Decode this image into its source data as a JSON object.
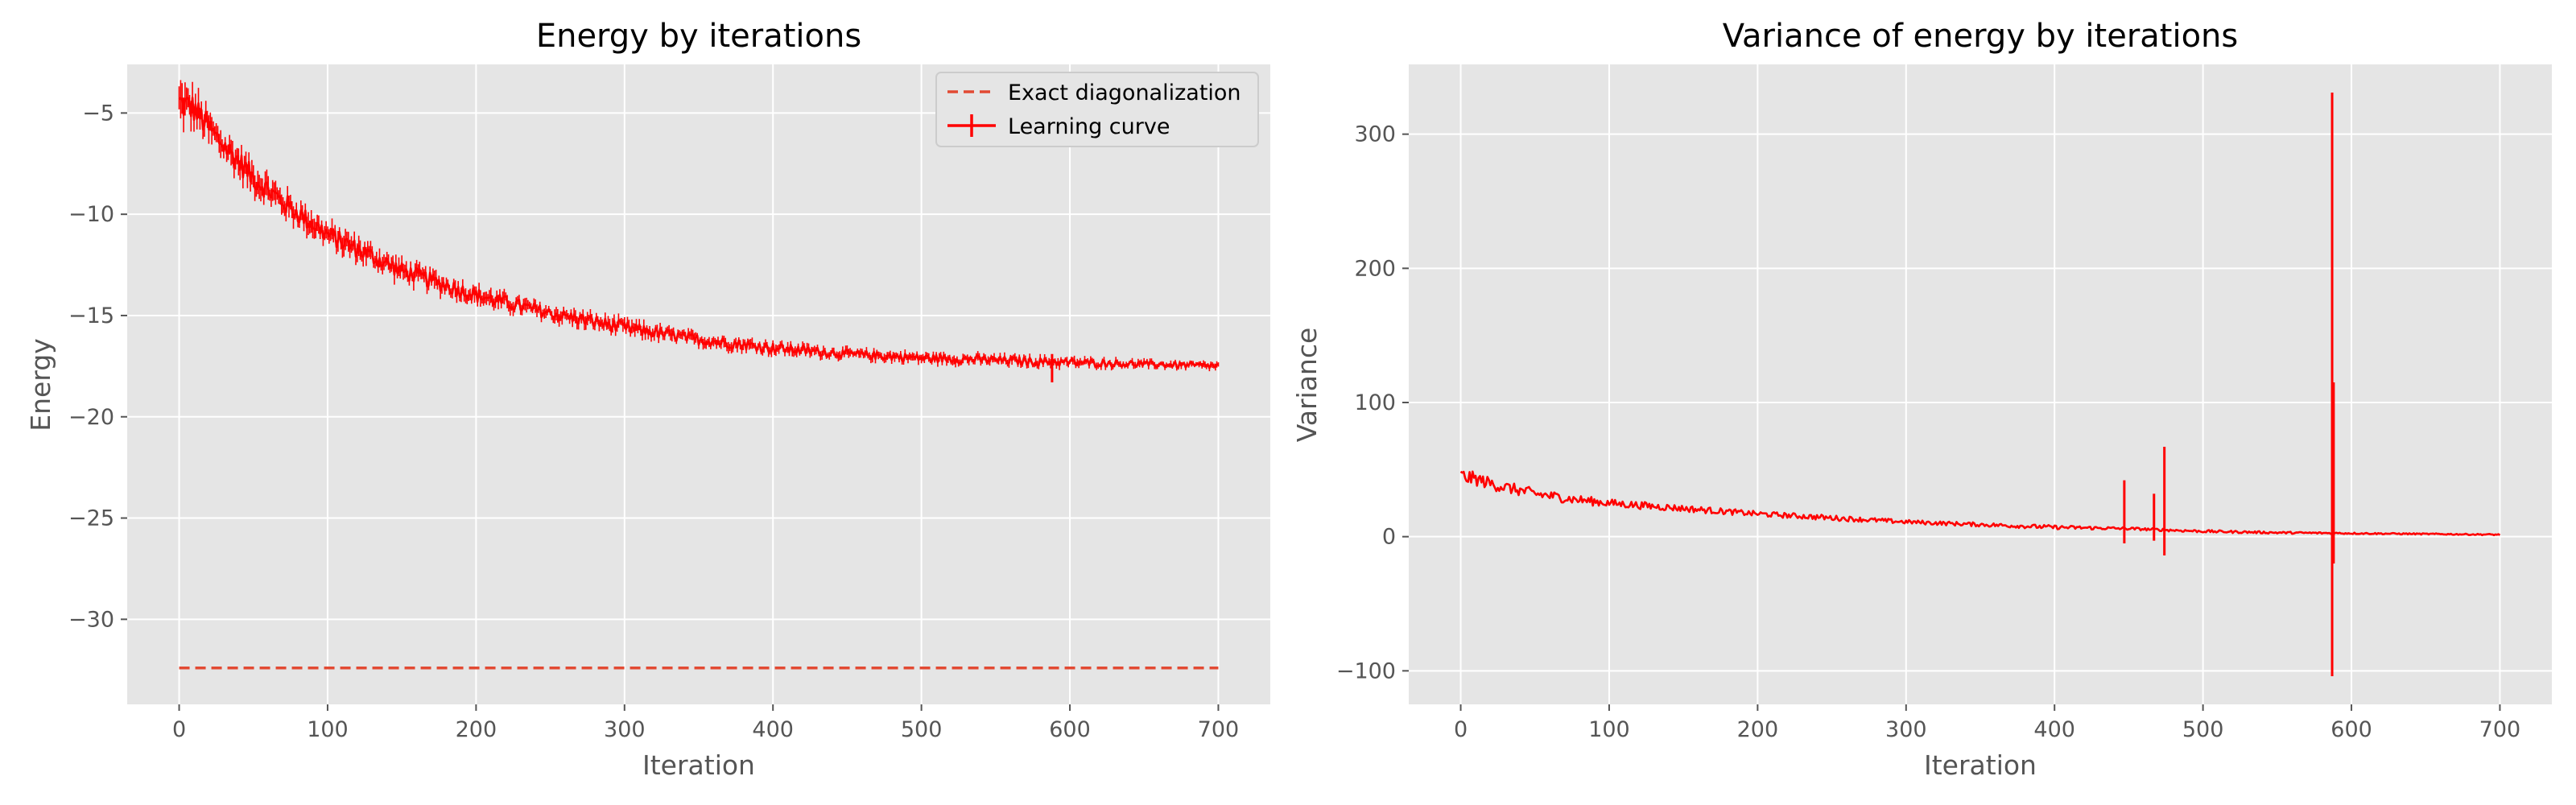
{
  "colors": {
    "background": "#ffffff",
    "panel": "#e5e5e5",
    "grid": "#ffffff",
    "tick_text": "#555555",
    "learning_curve": "#ff0000",
    "exact_line": "#e24a33"
  },
  "chart_data": [
    {
      "type": "line",
      "title": "Energy by iterations",
      "xlabel": "Iteration",
      "ylabel": "Energy",
      "xlim": [
        -35,
        735
      ],
      "ylim": [
        -34.2,
        -2.6
      ],
      "xticks": [
        0,
        100,
        200,
        300,
        400,
        500,
        600,
        700
      ],
      "yticks": [
        -30,
        -25,
        -20,
        -15,
        -10,
        -5
      ],
      "grid": true,
      "legend_position": "top-right",
      "series": [
        {
          "name": "Exact diagonalization",
          "style": "dashed",
          "x": [
            0,
            700
          ],
          "y": [
            -32.4,
            -32.4
          ]
        },
        {
          "name": "Learning curve",
          "style": "solid with error bars",
          "x": [
            0,
            10,
            25,
            50,
            75,
            100,
            150,
            200,
            250,
            300,
            350,
            400,
            450,
            500,
            550,
            588,
            650,
            700
          ],
          "y": [
            -4.5,
            -4.8,
            -6.2,
            -8.2,
            -9.7,
            -11.0,
            -12.8,
            -14.0,
            -14.9,
            -15.6,
            -16.2,
            -16.6,
            -16.9,
            -17.1,
            -17.2,
            -17.3,
            -17.4,
            -17.5
          ],
          "noise": [
            0.8,
            0.7,
            0.6,
            0.55,
            0.5,
            0.45,
            0.4,
            0.35,
            0.3,
            0.3,
            0.25,
            0.25,
            0.2,
            0.2,
            0.2,
            0.2,
            0.15,
            0.15
          ],
          "spikes": [
            {
              "x": 588,
              "low": -18.3,
              "high": -16.9
            }
          ]
        }
      ]
    },
    {
      "type": "line",
      "title": "Variance of energy by iterations",
      "xlabel": "Iteration",
      "ylabel": "Variance",
      "xlim": [
        -35,
        735
      ],
      "ylim": [
        -125,
        352
      ],
      "xticks": [
        0,
        100,
        200,
        300,
        400,
        500,
        600,
        700
      ],
      "yticks": [
        -100,
        0,
        100,
        200,
        300
      ],
      "grid": true,
      "series": [
        {
          "style": "solid",
          "x": [
            0,
            10,
            25,
            50,
            75,
            100,
            150,
            200,
            250,
            300,
            350,
            400,
            450,
            500,
            550,
            600,
            650,
            700
          ],
          "y": [
            45,
            43,
            38,
            32,
            28,
            25,
            21,
            17,
            14,
            11,
            9,
            7,
            6,
            4,
            3,
            2.5,
            2,
            1.5
          ],
          "noise": [
            6,
            5,
            4.5,
            4,
            3.5,
            3,
            2.5,
            2,
            2,
            1.5,
            1.5,
            1.5,
            1,
            1,
            0.8,
            0.6,
            0.5,
            0.5
          ],
          "spikes": [
            {
              "x": 447,
              "low": -5,
              "high": 42
            },
            {
              "x": 467,
              "low": -3,
              "high": 32
            },
            {
              "x": 474,
              "low": -14,
              "high": 67
            },
            {
              "x": 587,
              "low": -104,
              "high": 331
            },
            {
              "x": 588,
              "low": -20,
              "high": 115
            }
          ]
        }
      ]
    }
  ]
}
